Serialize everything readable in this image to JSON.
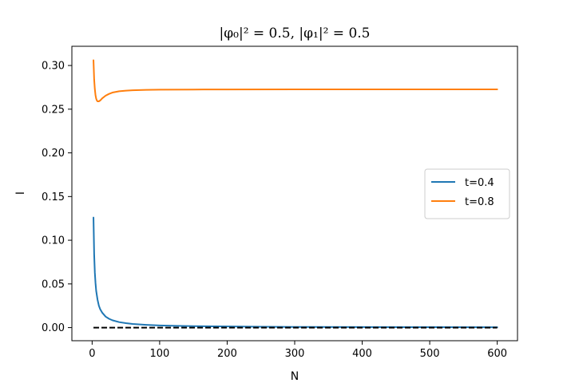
{
  "chart_data": {
    "type": "line",
    "title": "|φ₀|² = 0.5, |φ₁|² = 0.5",
    "xlabel": "N",
    "ylabel": "I",
    "xlim": [
      -30,
      630
    ],
    "ylim": [
      -0.015,
      0.322
    ],
    "xticks": [
      0,
      100,
      200,
      300,
      400,
      500,
      600
    ],
    "xtick_labels": [
      "0",
      "100",
      "200",
      "300",
      "400",
      "500",
      "600"
    ],
    "yticks": [
      0.0,
      0.05,
      0.1,
      0.15,
      0.2,
      0.25,
      0.3
    ],
    "ytick_labels": [
      "0.00",
      "0.05",
      "0.10",
      "0.15",
      "0.20",
      "0.25",
      "0.30"
    ],
    "grid": false,
    "legend_position": "center-right",
    "series": [
      {
        "name": "t=0.4",
        "color": "#1f77b4",
        "style": "solid",
        "x": [
          2,
          3,
          4,
          5,
          6,
          8,
          10,
          12,
          15,
          20,
          25,
          30,
          40,
          50,
          60,
          80,
          100,
          125,
          150,
          200,
          250,
          300,
          400,
          500,
          600
        ],
        "y": [
          0.126,
          0.084,
          0.063,
          0.051,
          0.042,
          0.032,
          0.025,
          0.021,
          0.017,
          0.0126,
          0.0101,
          0.0084,
          0.0063,
          0.0051,
          0.0042,
          0.0032,
          0.0025,
          0.002,
          0.0017,
          0.0013,
          0.001,
          0.0008,
          0.0006,
          0.0005,
          0.0004
        ]
      },
      {
        "name": "t=0.8",
        "color": "#ff7f0e",
        "style": "solid",
        "x": [
          2,
          3,
          4,
          5,
          6,
          7,
          8,
          10,
          12,
          15,
          20,
          25,
          30,
          40,
          50,
          60,
          80,
          100,
          150,
          200,
          300,
          400,
          500,
          600
        ],
        "y": [
          0.306,
          0.284,
          0.273,
          0.266,
          0.262,
          0.26,
          0.259,
          0.259,
          0.26,
          0.2625,
          0.2655,
          0.2675,
          0.269,
          0.2705,
          0.2712,
          0.2717,
          0.2721,
          0.2723,
          0.2725,
          0.2726,
          0.2727,
          0.2727,
          0.2727,
          0.2727
        ]
      },
      {
        "name": "",
        "color": "#000000",
        "style": "dashed",
        "x": [
          2,
          600
        ],
        "y": [
          0.0,
          0.0
        ]
      }
    ]
  }
}
